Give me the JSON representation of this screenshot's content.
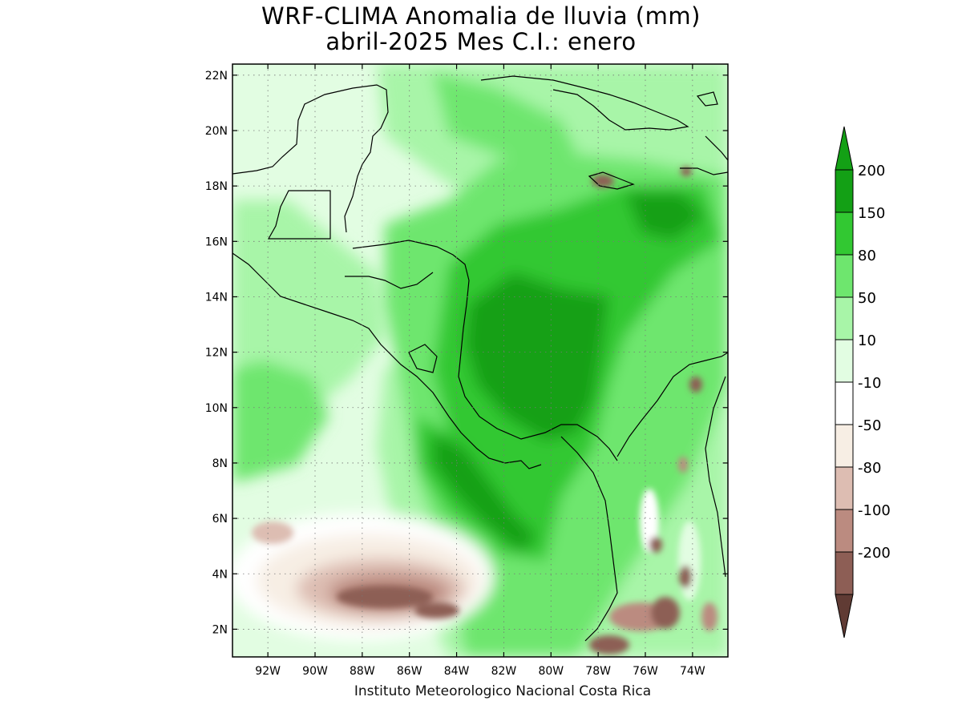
{
  "title_line1": "WRF-CLIMA Anomalia de lluvia (mm)",
  "title_line2": "abril-2025 Mes C.I.: enero",
  "credit": "Instituto Meteorologico Nacional Costa Rica",
  "map": {
    "lon_range": [
      -93.5,
      -72.5
    ],
    "lat_range": [
      1,
      22.4
    ],
    "lon_ticks": [
      {
        "value": -92,
        "label": "92W"
      },
      {
        "value": -90,
        "label": "90W"
      },
      {
        "value": -88,
        "label": "88W"
      },
      {
        "value": -86,
        "label": "86W"
      },
      {
        "value": -84,
        "label": "84W"
      },
      {
        "value": -82,
        "label": "82W"
      },
      {
        "value": -80,
        "label": "80W"
      },
      {
        "value": -78,
        "label": "78W"
      },
      {
        "value": -76,
        "label": "76W"
      },
      {
        "value": -74,
        "label": "74W"
      }
    ],
    "lat_ticks": [
      {
        "value": 2,
        "label": "2N"
      },
      {
        "value": 4,
        "label": "4N"
      },
      {
        "value": 6,
        "label": "6N"
      },
      {
        "value": 8,
        "label": "8N"
      },
      {
        "value": 10,
        "label": "10N"
      },
      {
        "value": 12,
        "label": "12N"
      },
      {
        "value": 14,
        "label": "14N"
      },
      {
        "value": 16,
        "label": "16N"
      },
      {
        "value": 18,
        "label": "18N"
      },
      {
        "value": 20,
        "label": "20N"
      },
      {
        "value": 22,
        "label": "22N"
      }
    ],
    "grid": true
  },
  "colorbar": {
    "bins": [
      {
        "color": "#13a015",
        "label": "200"
      },
      {
        "color": "#32c832",
        "label": "150"
      },
      {
        "color": "#6ee66e",
        "label": "80"
      },
      {
        "color": "#a8f5a8",
        "label": "50"
      },
      {
        "color": "#e2fde2",
        "label": "10"
      },
      {
        "color": "#ffffff",
        "label": "-10"
      },
      {
        "color": "#f7eee4",
        "label": "-50"
      },
      {
        "color": "#ddbdb2",
        "label": "-80"
      },
      {
        "color": "#bb8b80",
        "label": "-100"
      },
      {
        "color": "#8d5e55",
        "label": "-200"
      },
      {
        "color": "#603b34",
        "label": ""
      }
    ],
    "top_arrow_color": "#13a015"
  }
}
